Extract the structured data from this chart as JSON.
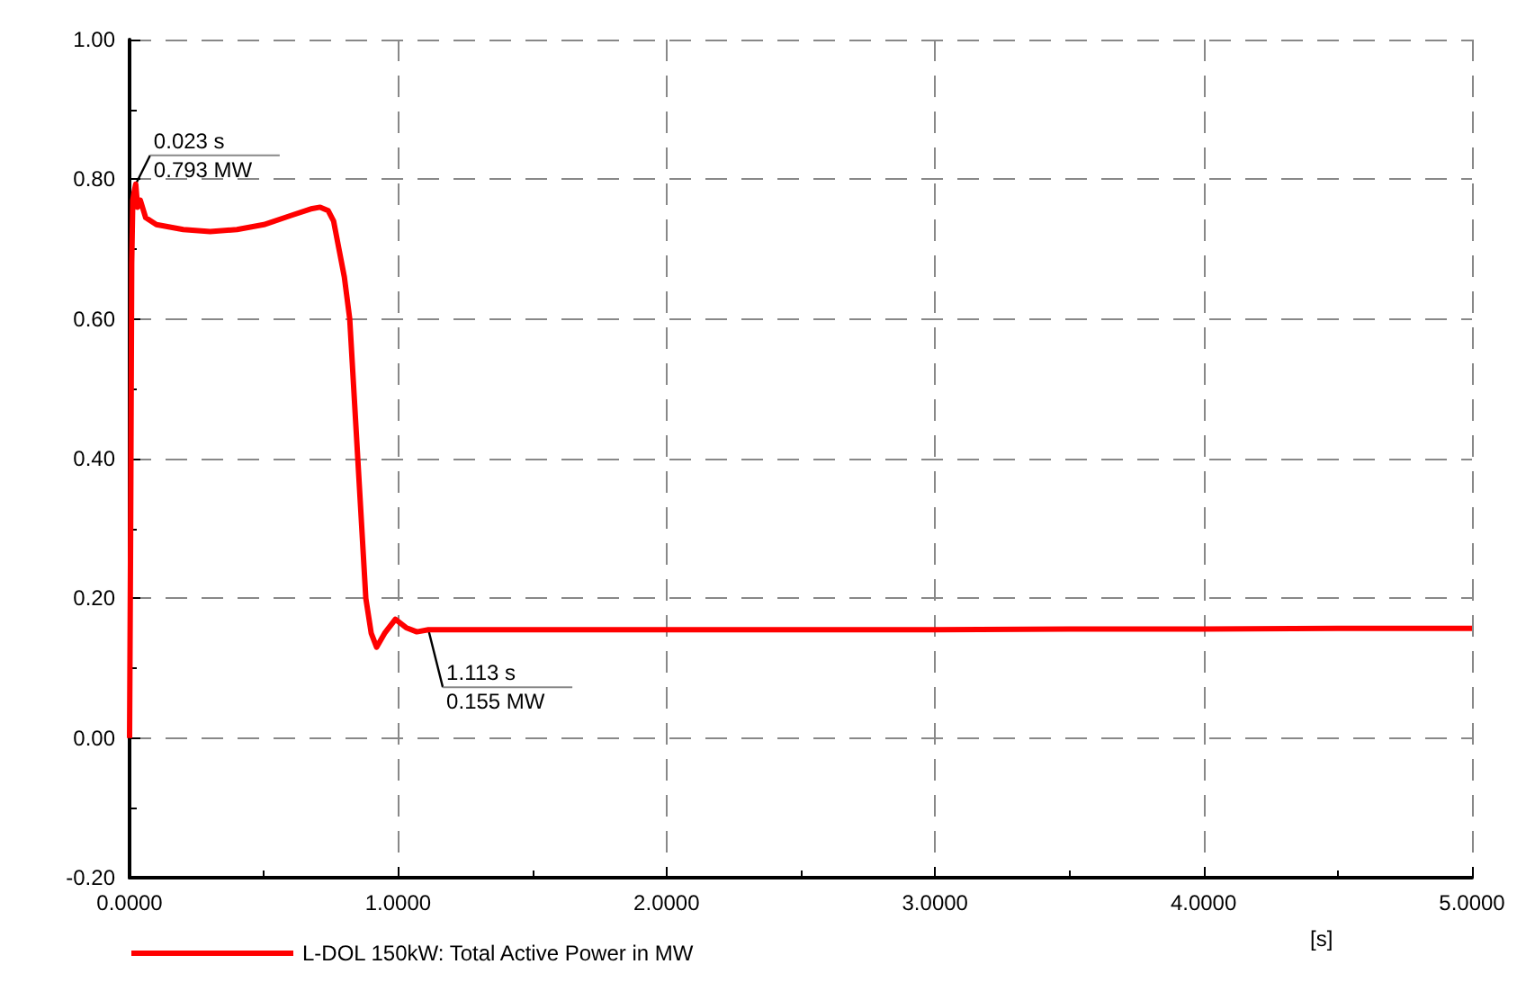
{
  "chart_data": {
    "type": "line",
    "xlabel": "[s]",
    "x": [
      0,
      0.004,
      0.008,
      0.012,
      0.016,
      0.023,
      0.03,
      0.04,
      0.06,
      0.1,
      0.2,
      0.3,
      0.4,
      0.5,
      0.6,
      0.68,
      0.71,
      0.74,
      0.76,
      0.78,
      0.8,
      0.82,
      0.85,
      0.88,
      0.9,
      0.92,
      0.95,
      0.99,
      1.03,
      1.07,
      1.113,
      1.2,
      1.5,
      2,
      2.5,
      3,
      3.5,
      4,
      4.5,
      5
    ],
    "series": [
      {
        "name": "L-DOL 150kW: Total Active Power in MW",
        "color": "#ff0000",
        "values": [
          0,
          0.3,
          0.68,
          0.77,
          0.78,
          0.793,
          0.76,
          0.77,
          0.745,
          0.735,
          0.728,
          0.725,
          0.728,
          0.735,
          0.748,
          0.758,
          0.76,
          0.755,
          0.74,
          0.7,
          0.66,
          0.6,
          0.4,
          0.2,
          0.15,
          0.13,
          0.15,
          0.17,
          0.158,
          0.152,
          0.155,
          0.155,
          0.155,
          0.155,
          0.155,
          0.155,
          0.156,
          0.156,
          0.157,
          0.157
        ]
      }
    ],
    "xlim": [
      0,
      5
    ],
    "xticks": [
      {
        "value": 0,
        "label": "0.0000"
      },
      {
        "value": 1,
        "label": "1.0000"
      },
      {
        "value": 2,
        "label": "2.0000"
      },
      {
        "value": 3,
        "label": "3.0000"
      },
      {
        "value": 4,
        "label": "4.0000"
      },
      {
        "value": 5,
        "label": "5.0000"
      }
    ],
    "ylim": [
      -0.2,
      1
    ],
    "yticks": [
      {
        "value": -0.2,
        "label": "-0.20"
      },
      {
        "value": 0,
        "label": "0.00"
      },
      {
        "value": 0.2,
        "label": "0.20"
      },
      {
        "value": 0.4,
        "label": "0.40"
      },
      {
        "value": 0.6,
        "label": "0.60"
      },
      {
        "value": 0.8,
        "label": "0.80"
      },
      {
        "value": 1,
        "label": "1.00"
      }
    ],
    "annotations": [
      {
        "text": "0.023 s\n0.793 MW",
        "x": 0.023,
        "y": 0.793
      },
      {
        "text": "1.113 s\n0.155 MW",
        "x": 1.113,
        "y": 0.155
      }
    ],
    "grid": true,
    "legend": "bottom left",
    "marker": "none",
    "line_style": "solid"
  }
}
